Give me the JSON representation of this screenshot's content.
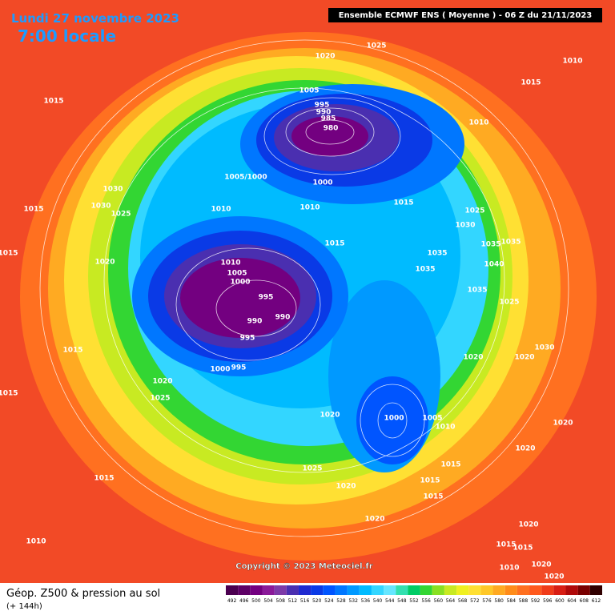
{
  "header": {
    "title": "Lundi 27 novembre 2023",
    "subtitle": "7:00 locale",
    "model": "Ensemble ECMWF ENS  ( Moyenne )  - 06 Z du 21/11/2023"
  },
  "copyright": "Copyright © 2023 Meteociel.fr",
  "footer": {
    "product": "Géop. Z500 & pression au sol",
    "lead": "(+ 144h)"
  },
  "scale": {
    "values": [
      492,
      496,
      500,
      504,
      508,
      512,
      516,
      520,
      524,
      528,
      532,
      536,
      540,
      544,
      548,
      552,
      556,
      560,
      564,
      568,
      572,
      576,
      580,
      584,
      588,
      592,
      596,
      600,
      604,
      608,
      612
    ],
    "colors": [
      "#4b0050",
      "#5e0066",
      "#730080",
      "#8a1a99",
      "#7d3aa8",
      "#4a2fb0",
      "#1f2ad0",
      "#0a3ae6",
      "#0055ff",
      "#0077ff",
      "#0099ff",
      "#00bbff",
      "#33d6ff",
      "#66e6ff",
      "#33e0b0",
      "#00cc66",
      "#33d633",
      "#88e022",
      "#c8ea22",
      "#f0f020",
      "#ffe033",
      "#ffc828",
      "#ffaa22",
      "#ff8c1a",
      "#ff7020",
      "#ff5a1e",
      "#f03c1a",
      "#d81e14",
      "#b00a0a",
      "#7a0000",
      "#300000"
    ]
  },
  "isobar_labels": [
    "1020",
    "1025",
    "1010",
    "1015",
    "1015",
    "1005",
    "995",
    "990",
    "985",
    "980",
    "1010",
    "1005/1000",
    "1000",
    "1030",
    "1030",
    "1025",
    "1015",
    "1010",
    "1010",
    "1015",
    "1025",
    "1030",
    "1015",
    "1020",
    "1015",
    "1035",
    "1035",
    "1035",
    "1040",
    "1010",
    "1005",
    "1000",
    "1035",
    "995",
    "990",
    "990",
    "995",
    "1035",
    "1025",
    "1015",
    "1000",
    "995",
    "1020",
    "1030",
    "1020",
    "1015",
    "1020",
    "1025",
    "1020",
    "1000",
    "1005",
    "1010",
    "1020",
    "1020",
    "1025",
    "1015",
    "1015",
    "1020",
    "1015",
    "1015",
    "1020",
    "1020",
    "1010",
    "1015",
    "1015",
    "1010",
    "1020",
    "1020"
  ]
}
